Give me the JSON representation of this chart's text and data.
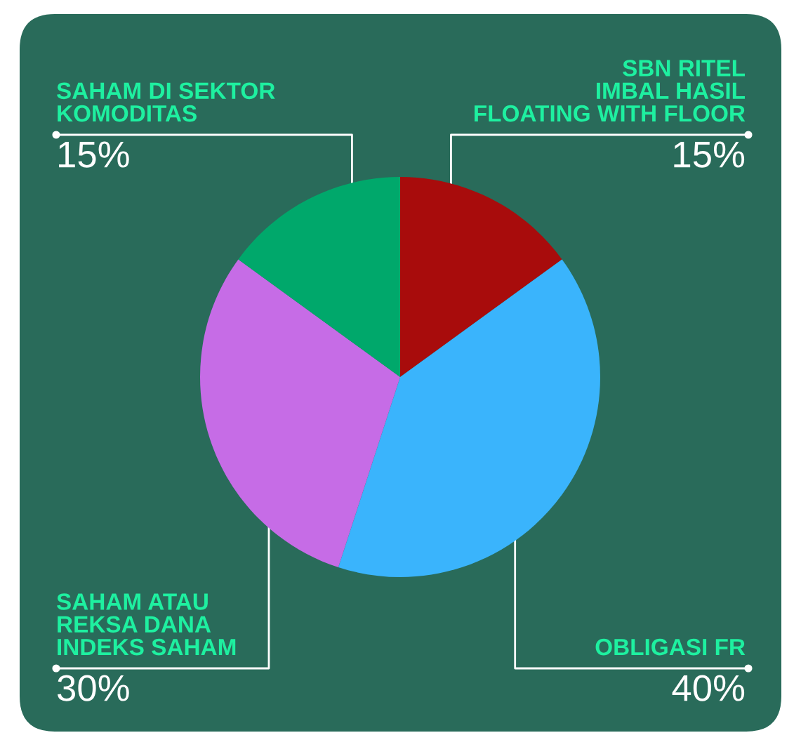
{
  "chart_data": {
    "type": "pie",
    "categories": [
      "SBN RITEL\nIMBAL HASIL\nFLOATING WITH FLOOR",
      "OBLIGASI FR",
      "SAHAM ATAU\nREKSA DANA\nINDEKS SAHAM",
      "SAHAM DI SEKTOR\nKOMODITAS"
    ],
    "values": [
      15,
      40,
      30,
      15
    ],
    "colors": [
      "#a80c0c",
      "#3ab4fc",
      "#c66ce6",
      "#00a86b"
    ],
    "value_labels": [
      "15%",
      "40%",
      "30%",
      "15%"
    ],
    "legend": false
  }
}
